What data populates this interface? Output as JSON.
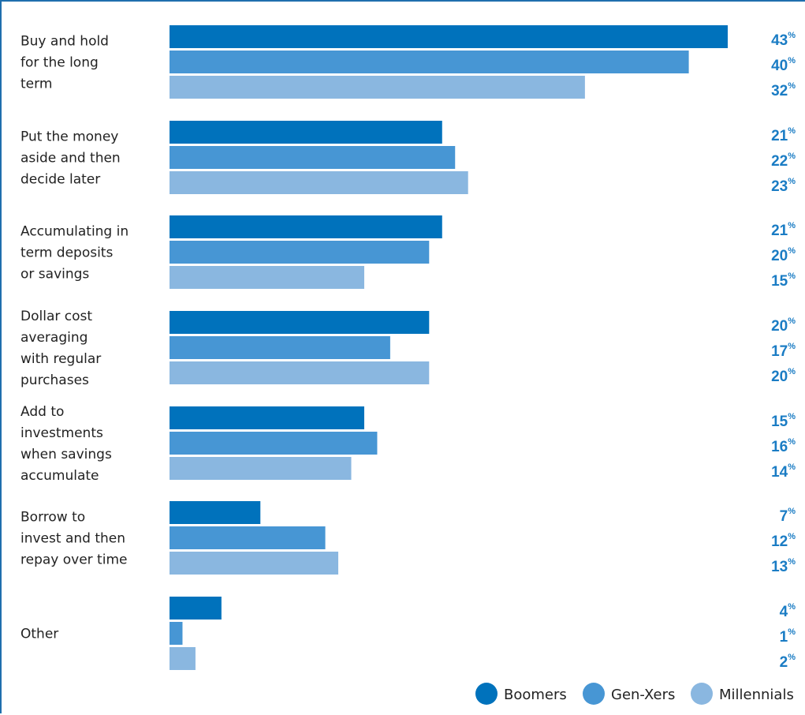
{
  "chart_data": {
    "type": "bar",
    "orientation": "horizontal",
    "categories": [
      [
        "Buy and hold",
        "for the long",
        "term"
      ],
      [
        "Put the money",
        "aside and then",
        "decide later"
      ],
      [
        "Accumulating in",
        "term deposits",
        "or savings"
      ],
      [
        "Dollar cost",
        "averaging",
        "with regular",
        "purchases"
      ],
      [
        "Add to",
        "investments",
        "when savings",
        "accumulate"
      ],
      [
        "Borrow to",
        "invest and then",
        "repay over time"
      ],
      [
        "Other"
      ]
    ],
    "series": [
      {
        "name": "Boomers",
        "color": "#0072bc",
        "values": [
          43,
          21,
          21,
          20,
          15,
          7,
          4
        ]
      },
      {
        "name": "Gen-Xers",
        "color": "#4796d4",
        "values": [
          40,
          22,
          20,
          17,
          16,
          12,
          1
        ]
      },
      {
        "name": "Millennials",
        "color": "#8ab7e0",
        "values": [
          32,
          23,
          15,
          20,
          14,
          13,
          2
        ]
      }
    ],
    "value_suffix": "%",
    "value_color": "#1a7cc4",
    "xlim": [
      0,
      43
    ],
    "legend_position": "bottom-right",
    "grid": false
  }
}
